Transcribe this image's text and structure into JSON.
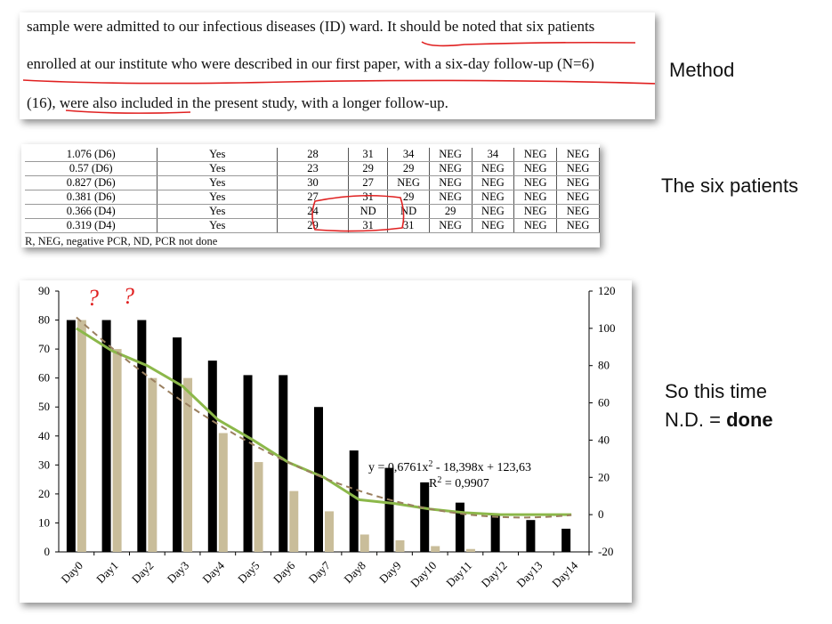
{
  "method": {
    "lines": [
      "sample were admitted to our infectious diseases (ID) ward. It should be noted that six patients",
      "enrolled at our institute who were described in our first paper, with a six-day follow-up (N=6)",
      "(16), were also included in the present study, with a longer follow-up."
    ],
    "label": "Method"
  },
  "patients": {
    "label": "The six patients",
    "rows": [
      [
        "1.076 (D6)",
        "Yes",
        "28",
        "31",
        "34",
        "NEG",
        "34",
        "NEG",
        "NEG"
      ],
      [
        "0.57 (D6)",
        "Yes",
        "23",
        "29",
        "29",
        "NEG",
        "NEG",
        "NEG",
        "NEG"
      ],
      [
        "0.827 (D6)",
        "Yes",
        "30",
        "27",
        "NEG",
        "NEG",
        "NEG",
        "NEG",
        "NEG"
      ],
      [
        "0.381 (D6)",
        "Yes",
        "27",
        "31",
        "29",
        "NEG",
        "NEG",
        "NEG",
        "NEG"
      ],
      [
        "0.366 (D4)",
        "Yes",
        "24",
        "ND",
        "ND",
        "29",
        "NEG",
        "NEG",
        "NEG"
      ],
      [
        "0.319 (D4)",
        "Yes",
        "29",
        "31",
        "31",
        "NEG",
        "NEG",
        "NEG",
        "NEG"
      ]
    ],
    "footnote": "R, NEG, negative PCR, ND, PCR not done"
  },
  "conclusion": {
    "line1": "So this time",
    "line2_prefix": "N.D. = ",
    "line2_bold": "done"
  },
  "annotation_marks": [
    "?",
    "?"
  ],
  "chart_data": {
    "type": "bar",
    "categories": [
      "Day0",
      "Day1",
      "Day2",
      "Day3",
      "Day4",
      "Day5",
      "Day6",
      "Day7",
      "Day8",
      "Day9",
      "Day10",
      "Day11",
      "Day12",
      "Day13",
      "Day14"
    ],
    "series": [
      {
        "values": [
          80,
          80,
          80,
          74,
          66,
          61,
          61,
          50,
          35,
          29,
          24,
          17,
          13,
          11,
          8
        ],
        "color": "#000000",
        "axis": "left"
      },
      {
        "values": [
          80,
          70,
          60,
          60,
          41,
          31,
          21,
          14,
          6,
          4,
          2,
          1,
          0,
          0,
          0
        ],
        "color": "#c9bd9a",
        "axis": "left"
      },
      {
        "type": "line",
        "values": [
          100,
          88,
          80,
          69,
          51,
          40,
          28,
          20,
          8,
          6,
          3,
          1,
          0,
          0,
          0
        ],
        "color": "#8cb84a",
        "axis": "right"
      }
    ],
    "left_ticks": [
      "0",
      "10",
      "20",
      "30",
      "40",
      "50",
      "60",
      "70",
      "80",
      "90"
    ],
    "right_ticks": [
      "-20",
      "0",
      "20",
      "40",
      "60",
      "80",
      "100",
      "120"
    ],
    "ylim_left": [
      0,
      90
    ],
    "ylim_right": [
      -20,
      120
    ],
    "trendline": {
      "equation_base": "y = 0,6761x",
      "equation_sup": "2",
      "equation_rest": " - 18,398x + 123,63",
      "r2_label": "R",
      "r2_sup": "2",
      "r2_value": " = 0,9907",
      "a": 0.6761,
      "b": -18.398,
      "c": 123.63,
      "color": "#9b8060"
    }
  }
}
